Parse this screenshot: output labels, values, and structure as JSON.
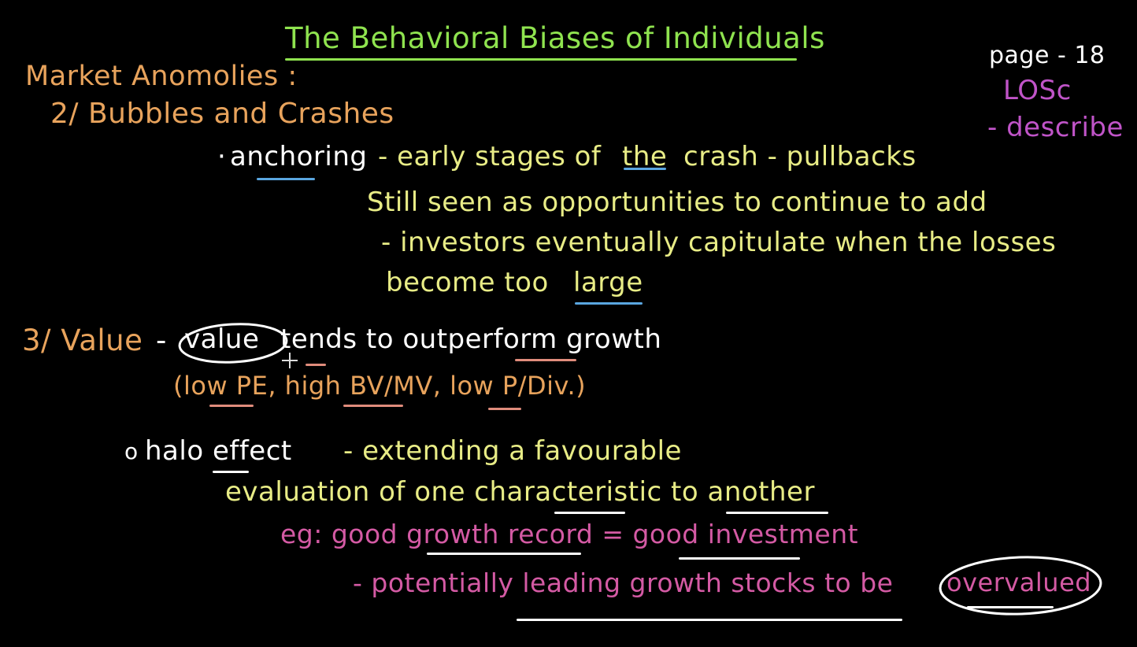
{
  "colors": {
    "background": "#000000",
    "green": "#8fe34f",
    "orange": "#e8a35c",
    "white": "#ffffff",
    "yellow": "#e8ec86",
    "magenta": "#c054c8",
    "pink": "#d45aa4",
    "blue_underline": "#5aa6e0",
    "salmon_underline": "#e08c7c"
  },
  "header": {
    "title": "The Behavioral Biases of Individuals",
    "page_ref": "page - 18",
    "los": "LOSc",
    "verb": "- describe"
  },
  "section_anomalies": {
    "heading": "Market Anomolies :",
    "bubbles_heading": "2/ Bubbles and Crashes",
    "anchoring_bullet": "·",
    "anchoring_term": "anchoring",
    "anchoring_part1": "- early stages of",
    "anchoring_the": "the",
    "anchoring_part2": "crash - pullbacks",
    "line2": "Still seen as opportunities to continue to add",
    "line3": "- investors eventually capitulate when the losses",
    "line4_part1": "become too",
    "line4_large": "large"
  },
  "section_value": {
    "heading": "3/ Value",
    "dash": "-",
    "value_word": "value",
    "rest": "tends to outperform growth",
    "ratios": "(low PE, high BV/MV, low P/Div.)"
  },
  "section_halo": {
    "bullet": "o",
    "term": "halo effect",
    "def1": "- extending a favourable",
    "def2": "evaluation of one characteristic to another",
    "example": "eg: good growth record = good investment",
    "consequence_part1": "- potentially leading growth stocks to be",
    "consequence_overvalued": "overvalued"
  }
}
